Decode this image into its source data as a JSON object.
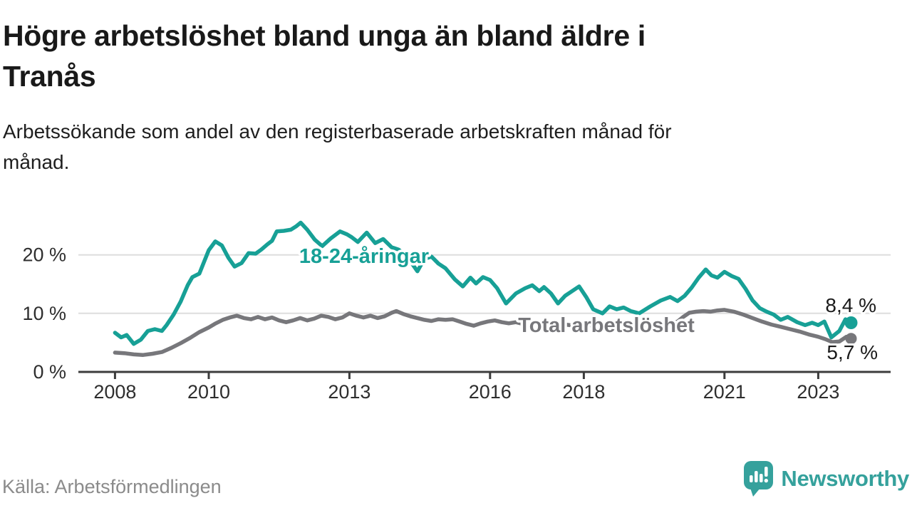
{
  "header": {
    "title": "Högre arbetslöshet bland unga än bland äldre i\nTranås",
    "subtitle": "Arbetssökande som andel av den registerbaserade arbetskraften månad för\nmånad."
  },
  "footer": {
    "source": "Källa: Arbetsförmedlingen",
    "brand": "Newsworthy",
    "brand_color": "#35a19c"
  },
  "chart_data": {
    "type": "line",
    "title": "Högre arbetslöshet bland unga än bland äldre i Tranås",
    "subtitle": "Arbetssökande som andel av den registerbaserade arbetskraften månad för månad.",
    "unit": "%",
    "grid_on": true,
    "grid_color": "#dedede",
    "axis_color": "#3c3c3c",
    "x_range": [
      2007.22,
      2024.54
    ],
    "y_range": [
      0,
      27
    ],
    "x_ticks": [
      2008,
      2010,
      2013,
      2016,
      2018,
      2021,
      2023
    ],
    "y_ticks": [
      {
        "value": 0,
        "label": "0 %"
      },
      {
        "value": 10,
        "label": "10 %"
      },
      {
        "value": 20,
        "label": "20 %"
      }
    ],
    "legend_position": "inline-labels",
    "series": [
      {
        "name": "18-24-åringar",
        "color": "#17a096",
        "end_label": "8,4 %",
        "end_value": 8.4,
        "points": [
          [
            2008.0,
            6.7
          ],
          [
            2008.13,
            5.9
          ],
          [
            2008.25,
            6.3
          ],
          [
            2008.4,
            4.8
          ],
          [
            2008.55,
            5.5
          ],
          [
            2008.7,
            7.0
          ],
          [
            2008.85,
            7.3
          ],
          [
            2009.0,
            7.0
          ],
          [
            2009.1,
            8.0
          ],
          [
            2009.25,
            9.8
          ],
          [
            2009.4,
            12.0
          ],
          [
            2009.55,
            14.8
          ],
          [
            2009.65,
            16.2
          ],
          [
            2009.8,
            16.8
          ],
          [
            2009.9,
            18.8
          ],
          [
            2010.0,
            20.8
          ],
          [
            2010.14,
            22.3
          ],
          [
            2010.28,
            21.6
          ],
          [
            2010.42,
            19.5
          ],
          [
            2010.55,
            18.0
          ],
          [
            2010.7,
            18.6
          ],
          [
            2010.85,
            20.3
          ],
          [
            2011.0,
            20.2
          ],
          [
            2011.12,
            20.9
          ],
          [
            2011.25,
            21.8
          ],
          [
            2011.35,
            22.4
          ],
          [
            2011.45,
            24.0
          ],
          [
            2011.6,
            24.1
          ],
          [
            2011.75,
            24.3
          ],
          [
            2011.87,
            24.9
          ],
          [
            2011.96,
            25.5
          ],
          [
            2012.1,
            24.3
          ],
          [
            2012.26,
            22.6
          ],
          [
            2012.42,
            21.5
          ],
          [
            2012.6,
            22.8
          ],
          [
            2012.8,
            24.0
          ],
          [
            2012.95,
            23.5
          ],
          [
            2013.05,
            23.0
          ],
          [
            2013.18,
            22.2
          ],
          [
            2013.37,
            23.8
          ],
          [
            2013.55,
            22.0
          ],
          [
            2013.72,
            22.7
          ],
          [
            2013.9,
            21.3
          ],
          [
            2014.05,
            20.9
          ],
          [
            2014.25,
            19.5
          ],
          [
            2014.45,
            17.2
          ],
          [
            2014.6,
            19.3
          ],
          [
            2014.75,
            19.7
          ],
          [
            2014.9,
            18.5
          ],
          [
            2015.05,
            17.7
          ],
          [
            2015.25,
            15.8
          ],
          [
            2015.42,
            14.6
          ],
          [
            2015.58,
            16.1
          ],
          [
            2015.7,
            15.1
          ],
          [
            2015.85,
            16.2
          ],
          [
            2016.0,
            15.7
          ],
          [
            2016.15,
            14.3
          ],
          [
            2016.34,
            11.7
          ],
          [
            2016.55,
            13.4
          ],
          [
            2016.75,
            14.3
          ],
          [
            2016.9,
            14.8
          ],
          [
            2017.05,
            13.8
          ],
          [
            2017.15,
            14.5
          ],
          [
            2017.3,
            13.4
          ],
          [
            2017.45,
            11.7
          ],
          [
            2017.6,
            13.0
          ],
          [
            2017.75,
            13.8
          ],
          [
            2017.9,
            14.6
          ],
          [
            2018.05,
            12.8
          ],
          [
            2018.2,
            10.7
          ],
          [
            2018.4,
            10.0
          ],
          [
            2018.55,
            11.2
          ],
          [
            2018.7,
            10.7
          ],
          [
            2018.85,
            11.0
          ],
          [
            2019.0,
            10.4
          ],
          [
            2019.18,
            10.0
          ],
          [
            2019.42,
            11.2
          ],
          [
            2019.64,
            12.2
          ],
          [
            2019.84,
            12.8
          ],
          [
            2020.0,
            12.1
          ],
          [
            2020.15,
            13.0
          ],
          [
            2020.3,
            14.4
          ],
          [
            2020.45,
            16.1
          ],
          [
            2020.6,
            17.5
          ],
          [
            2020.72,
            16.5
          ],
          [
            2020.85,
            16.1
          ],
          [
            2021.0,
            17.1
          ],
          [
            2021.15,
            16.4
          ],
          [
            2021.3,
            15.9
          ],
          [
            2021.45,
            14.2
          ],
          [
            2021.6,
            12.2
          ],
          [
            2021.75,
            10.9
          ],
          [
            2021.9,
            10.3
          ],
          [
            2022.05,
            9.8
          ],
          [
            2022.2,
            8.9
          ],
          [
            2022.35,
            9.4
          ],
          [
            2022.55,
            8.5
          ],
          [
            2022.72,
            8.0
          ],
          [
            2022.87,
            8.4
          ],
          [
            2023.0,
            8.0
          ],
          [
            2023.13,
            8.6
          ],
          [
            2023.28,
            5.9
          ],
          [
            2023.45,
            7.0
          ],
          [
            2023.58,
            9.0
          ],
          [
            2023.7,
            8.4
          ]
        ]
      },
      {
        "name": "Total arbetslöshet",
        "color": "#77777b",
        "end_label": "5,7 %",
        "end_value": 5.7,
        "points": [
          [
            2008.0,
            3.3
          ],
          [
            2008.2,
            3.2
          ],
          [
            2008.4,
            3.0
          ],
          [
            2008.6,
            2.9
          ],
          [
            2008.8,
            3.1
          ],
          [
            2009.0,
            3.4
          ],
          [
            2009.2,
            4.1
          ],
          [
            2009.4,
            4.9
          ],
          [
            2009.6,
            5.8
          ],
          [
            2009.8,
            6.8
          ],
          [
            2010.0,
            7.6
          ],
          [
            2010.15,
            8.3
          ],
          [
            2010.3,
            8.9
          ],
          [
            2010.45,
            9.3
          ],
          [
            2010.6,
            9.6
          ],
          [
            2010.75,
            9.2
          ],
          [
            2010.9,
            9.0
          ],
          [
            2011.05,
            9.4
          ],
          [
            2011.2,
            9.0
          ],
          [
            2011.35,
            9.3
          ],
          [
            2011.5,
            8.8
          ],
          [
            2011.65,
            8.5
          ],
          [
            2011.8,
            8.8
          ],
          [
            2011.95,
            9.2
          ],
          [
            2012.1,
            8.8
          ],
          [
            2012.25,
            9.1
          ],
          [
            2012.4,
            9.6
          ],
          [
            2012.55,
            9.4
          ],
          [
            2012.7,
            9.0
          ],
          [
            2012.85,
            9.3
          ],
          [
            2013.0,
            10.0
          ],
          [
            2013.15,
            9.6
          ],
          [
            2013.3,
            9.3
          ],
          [
            2013.45,
            9.6
          ],
          [
            2013.6,
            9.2
          ],
          [
            2013.75,
            9.5
          ],
          [
            2013.9,
            10.1
          ],
          [
            2014.0,
            10.4
          ],
          [
            2014.15,
            9.9
          ],
          [
            2014.3,
            9.5
          ],
          [
            2014.45,
            9.2
          ],
          [
            2014.6,
            8.9
          ],
          [
            2014.75,
            8.7
          ],
          [
            2014.9,
            9.0
          ],
          [
            2015.05,
            8.9
          ],
          [
            2015.2,
            9.0
          ],
          [
            2015.35,
            8.6
          ],
          [
            2015.5,
            8.2
          ],
          [
            2015.65,
            7.9
          ],
          [
            2015.8,
            8.3
          ],
          [
            2015.95,
            8.6
          ],
          [
            2016.1,
            8.8
          ],
          [
            2016.25,
            8.5
          ],
          [
            2016.4,
            8.3
          ],
          [
            2016.55,
            8.5
          ],
          [
            2016.7,
            8.2
          ],
          [
            2016.85,
            8.4
          ],
          [
            2017.0,
            8.2
          ],
          [
            2017.2,
            8.0
          ],
          [
            2017.4,
            8.3
          ],
          [
            2017.6,
            8.1
          ],
          [
            2017.8,
            7.9
          ],
          [
            2018.0,
            8.1
          ],
          [
            2018.2,
            7.9
          ],
          [
            2018.4,
            8.1
          ],
          [
            2018.6,
            7.8
          ],
          [
            2018.8,
            7.6
          ],
          [
            2019.0,
            7.8
          ],
          [
            2019.2,
            7.5
          ],
          [
            2019.4,
            7.7
          ],
          [
            2019.6,
            7.9
          ],
          [
            2019.8,
            8.1
          ],
          [
            2020.0,
            8.6
          ],
          [
            2020.12,
            9.4
          ],
          [
            2020.25,
            10.1
          ],
          [
            2020.4,
            10.3
          ],
          [
            2020.55,
            10.4
          ],
          [
            2020.7,
            10.3
          ],
          [
            2020.85,
            10.5
          ],
          [
            2021.0,
            10.6
          ],
          [
            2021.2,
            10.3
          ],
          [
            2021.4,
            9.8
          ],
          [
            2021.6,
            9.2
          ],
          [
            2021.8,
            8.6
          ],
          [
            2022.0,
            8.1
          ],
          [
            2022.2,
            7.7
          ],
          [
            2022.4,
            7.3
          ],
          [
            2022.6,
            6.9
          ],
          [
            2022.8,
            6.4
          ],
          [
            2023.0,
            6.0
          ],
          [
            2023.15,
            5.6
          ],
          [
            2023.3,
            5.1
          ],
          [
            2023.45,
            5.2
          ],
          [
            2023.6,
            6.0
          ],
          [
            2023.7,
            5.7
          ]
        ]
      }
    ]
  }
}
